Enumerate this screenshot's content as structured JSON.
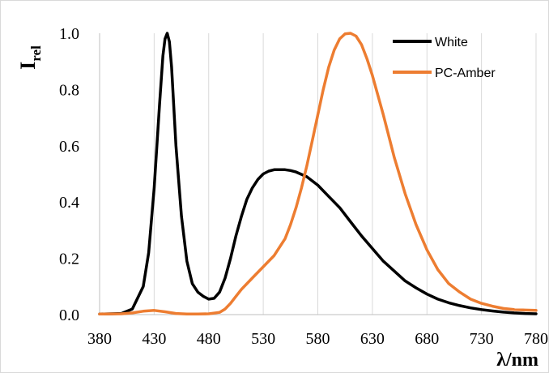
{
  "chart_data": {
    "type": "line",
    "title": "",
    "xlabel": "λ/nm",
    "ylabel_main": "I",
    "ylabel_sub": "rel",
    "xlim": [
      380,
      780
    ],
    "ylim": [
      0.0,
      1.0
    ],
    "x_ticks": [
      380,
      430,
      480,
      530,
      580,
      630,
      680,
      730,
      780
    ],
    "x_tick_labels": [
      "380",
      "430",
      "480",
      "530",
      "580",
      "630",
      "680",
      "730",
      "780"
    ],
    "y_ticks": [
      0.0,
      0.2,
      0.4,
      0.6,
      0.8,
      1.0
    ],
    "y_tick_labels": [
      "0.0",
      "0.2",
      "0.4",
      "0.6",
      "0.8",
      "1.0"
    ],
    "grid": "vertical",
    "legend_position": "top-right",
    "series": [
      {
        "name": "White",
        "color": "#000000",
        "points": [
          [
            380,
            0.002
          ],
          [
            400,
            0.004
          ],
          [
            410,
            0.02
          ],
          [
            420,
            0.1
          ],
          [
            425,
            0.22
          ],
          [
            430,
            0.45
          ],
          [
            435,
            0.75
          ],
          [
            438,
            0.92
          ],
          [
            440,
            0.98
          ],
          [
            442,
            1.0
          ],
          [
            444,
            0.97
          ],
          [
            446,
            0.88
          ],
          [
            450,
            0.6
          ],
          [
            455,
            0.35
          ],
          [
            460,
            0.19
          ],
          [
            465,
            0.11
          ],
          [
            470,
            0.08
          ],
          [
            475,
            0.065
          ],
          [
            480,
            0.055
          ],
          [
            485,
            0.058
          ],
          [
            490,
            0.08
          ],
          [
            495,
            0.13
          ],
          [
            500,
            0.2
          ],
          [
            505,
            0.28
          ],
          [
            510,
            0.35
          ],
          [
            515,
            0.41
          ],
          [
            520,
            0.45
          ],
          [
            525,
            0.48
          ],
          [
            530,
            0.5
          ],
          [
            535,
            0.51
          ],
          [
            540,
            0.515
          ],
          [
            545,
            0.515
          ],
          [
            550,
            0.515
          ],
          [
            555,
            0.512
          ],
          [
            560,
            0.507
          ],
          [
            570,
            0.49
          ],
          [
            580,
            0.46
          ],
          [
            590,
            0.42
          ],
          [
            600,
            0.38
          ],
          [
            610,
            0.33
          ],
          [
            620,
            0.28
          ],
          [
            630,
            0.235
          ],
          [
            640,
            0.19
          ],
          [
            650,
            0.155
          ],
          [
            660,
            0.12
          ],
          [
            670,
            0.095
          ],
          [
            680,
            0.073
          ],
          [
            690,
            0.055
          ],
          [
            700,
            0.042
          ],
          [
            710,
            0.032
          ],
          [
            720,
            0.024
          ],
          [
            730,
            0.018
          ],
          [
            740,
            0.013
          ],
          [
            750,
            0.009
          ],
          [
            760,
            0.006
          ],
          [
            770,
            0.004
          ],
          [
            780,
            0.003
          ]
        ]
      },
      {
        "name": "PC-Amber",
        "color": "#ed7d31",
        "points": [
          [
            380,
            0.002
          ],
          [
            400,
            0.003
          ],
          [
            410,
            0.006
          ],
          [
            420,
            0.012
          ],
          [
            430,
            0.015
          ],
          [
            440,
            0.01
          ],
          [
            450,
            0.004
          ],
          [
            460,
            0.002
          ],
          [
            470,
            0.002
          ],
          [
            480,
            0.003
          ],
          [
            490,
            0.008
          ],
          [
            495,
            0.02
          ],
          [
            500,
            0.04
          ],
          [
            505,
            0.065
          ],
          [
            510,
            0.09
          ],
          [
            520,
            0.13
          ],
          [
            530,
            0.17
          ],
          [
            540,
            0.21
          ],
          [
            550,
            0.27
          ],
          [
            555,
            0.32
          ],
          [
            560,
            0.38
          ],
          [
            565,
            0.45
          ],
          [
            570,
            0.53
          ],
          [
            575,
            0.62
          ],
          [
            580,
            0.71
          ],
          [
            585,
            0.8
          ],
          [
            590,
            0.88
          ],
          [
            595,
            0.94
          ],
          [
            600,
            0.98
          ],
          [
            605,
            0.998
          ],
          [
            610,
            1.0
          ],
          [
            615,
            0.99
          ],
          [
            620,
            0.96
          ],
          [
            625,
            0.91
          ],
          [
            630,
            0.85
          ],
          [
            640,
            0.71
          ],
          [
            650,
            0.56
          ],
          [
            660,
            0.43
          ],
          [
            670,
            0.32
          ],
          [
            680,
            0.23
          ],
          [
            690,
            0.16
          ],
          [
            700,
            0.11
          ],
          [
            710,
            0.08
          ],
          [
            720,
            0.055
          ],
          [
            730,
            0.04
          ],
          [
            740,
            0.03
          ],
          [
            750,
            0.022
          ],
          [
            760,
            0.018
          ],
          [
            770,
            0.016
          ],
          [
            780,
            0.015
          ]
        ]
      }
    ]
  }
}
